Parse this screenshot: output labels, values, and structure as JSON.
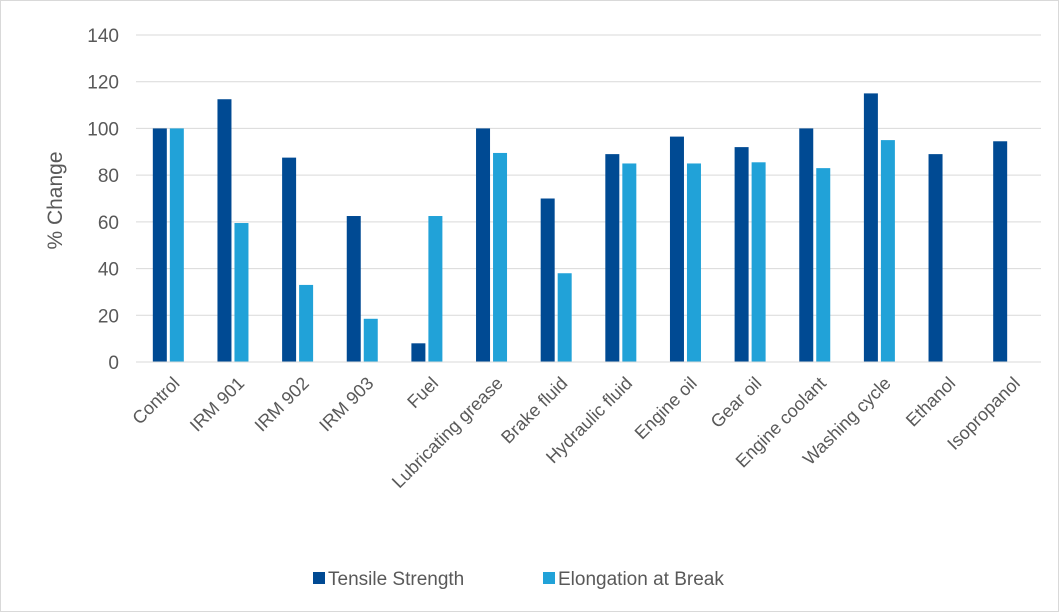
{
  "chart_data": {
    "type": "bar",
    "title": "",
    "xlabel": "",
    "ylabel": "% Change",
    "ylim": [
      0,
      140
    ],
    "yticks": [
      0,
      20,
      40,
      60,
      80,
      100,
      120,
      140
    ],
    "grid": true,
    "legend_position": "bottom",
    "categories": [
      "Control",
      "IRM 901",
      "IRM 902",
      "IRM 903",
      "Fuel",
      "Lubricating grease",
      "Brake fluid",
      "Hydraulic fluid",
      "Engine oil",
      "Gear oil",
      "Engine coolant",
      "Washing cycle",
      "Ethanol",
      "Isopropanol"
    ],
    "series": [
      {
        "name": "Tensile Strength",
        "color": "#004a93",
        "values": [
          100,
          112.5,
          87.5,
          62.5,
          8,
          100,
          70,
          89,
          96.5,
          92,
          100,
          115,
          89,
          94.5
        ]
      },
      {
        "name": "Elongation at Break",
        "color": "#21a2d8",
        "values": [
          100,
          59.5,
          33,
          18.5,
          62.5,
          89.5,
          38,
          85,
          85,
          85.5,
          83,
          95,
          null,
          null
        ]
      }
    ]
  }
}
